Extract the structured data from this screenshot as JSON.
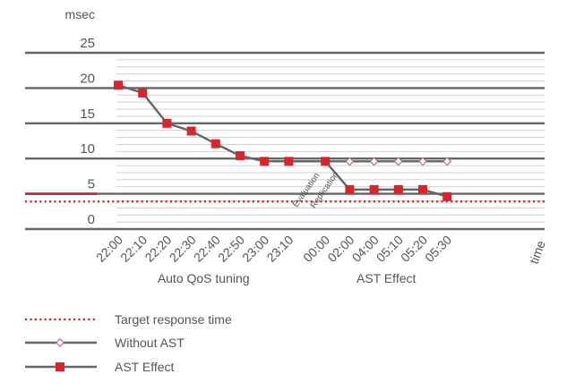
{
  "chart_data": {
    "type": "line",
    "y_unit": "msec",
    "x_axis_label": "time",
    "ylim": [
      0,
      25
    ],
    "y_ticks": [
      {
        "label": "25",
        "value": 25
      },
      {
        "label": "20",
        "value": 20
      },
      {
        "label": "15",
        "value": 15
      },
      {
        "label": "10",
        "value": 10
      },
      {
        "label": "5",
        "value": 5
      },
      {
        "label": "0",
        "value": 0
      }
    ],
    "x_ticks": [
      "22:00",
      "22:10",
      "22:20",
      "22:30",
      "22:40",
      "22:50",
      "23:00",
      "23:10",
      "00:00",
      "02:00",
      "04:00",
      "05:10",
      "05:20",
      "05:30"
    ],
    "x_tick_positions": [
      0,
      1,
      2,
      3,
      4,
      5,
      6,
      7,
      8.5,
      9.5,
      10.5,
      11.5,
      12.5,
      13.5
    ],
    "groups": [
      {
        "label": "Auto QoS tuning",
        "center": 3.5
      },
      {
        "label": "AST Effect",
        "center": 11
      }
    ],
    "annotations": [
      {
        "text": "Evaluation",
        "x": 7.8
      },
      {
        "text": "Replication",
        "x": 8.55
      }
    ],
    "target": {
      "name": "Target response time",
      "value": 3.9,
      "color": "#c0272d"
    },
    "series": [
      {
        "name": "Without AST",
        "color": "#666666",
        "marker": "diamond",
        "line_points": [
          [
            6,
            9.6
          ],
          [
            13.5,
            9.6
          ]
        ],
        "marker_points": [
          [
            9.5,
            9.6
          ],
          [
            10.5,
            9.6
          ],
          [
            11.5,
            9.6
          ],
          [
            12.5,
            9.6
          ],
          [
            13.5,
            9.6
          ]
        ]
      },
      {
        "name": "AST Effect",
        "color": "#666666",
        "marker": "square",
        "marker_color": "#d6252d",
        "line_points": [
          [
            0,
            20.4
          ],
          [
            1,
            19.3
          ],
          [
            2,
            15
          ],
          [
            3,
            13.9
          ],
          [
            4,
            12.1
          ],
          [
            5,
            10.4
          ],
          [
            6,
            9.6
          ],
          [
            7,
            9.6
          ],
          [
            8.5,
            9.6
          ],
          [
            9.5,
            5.6
          ],
          [
            10.5,
            5.6
          ],
          [
            11.5,
            5.6
          ],
          [
            12.5,
            5.6
          ],
          [
            13.5,
            4.6
          ]
        ],
        "marker_points": [
          [
            0,
            20.4
          ],
          [
            1,
            19.3
          ],
          [
            2,
            15
          ],
          [
            3,
            13.9
          ],
          [
            4,
            12.1
          ],
          [
            5,
            10.4
          ],
          [
            6,
            9.6
          ],
          [
            7,
            9.6
          ],
          [
            8.5,
            9.6
          ],
          [
            9.5,
            5.6
          ],
          [
            10.5,
            5.6
          ],
          [
            11.5,
            5.6
          ],
          [
            12.5,
            5.6
          ],
          [
            13.5,
            4.6
          ]
        ]
      }
    ],
    "legend": {
      "placement": "bottom-left",
      "entries": [
        {
          "label": "Target response time",
          "style": "dotted",
          "color": "#c0272d"
        },
        {
          "label": "Without AST",
          "style": "line-diamond",
          "color": "#666666"
        },
        {
          "label": "AST Effect",
          "style": "line-square",
          "color": "#666666",
          "marker_color": "#d6252d"
        }
      ]
    },
    "colors": {
      "grid_major": "#666666",
      "grid_minor": "#cfcfcf",
      "text": "#555555",
      "accent": "#c0272d"
    }
  }
}
